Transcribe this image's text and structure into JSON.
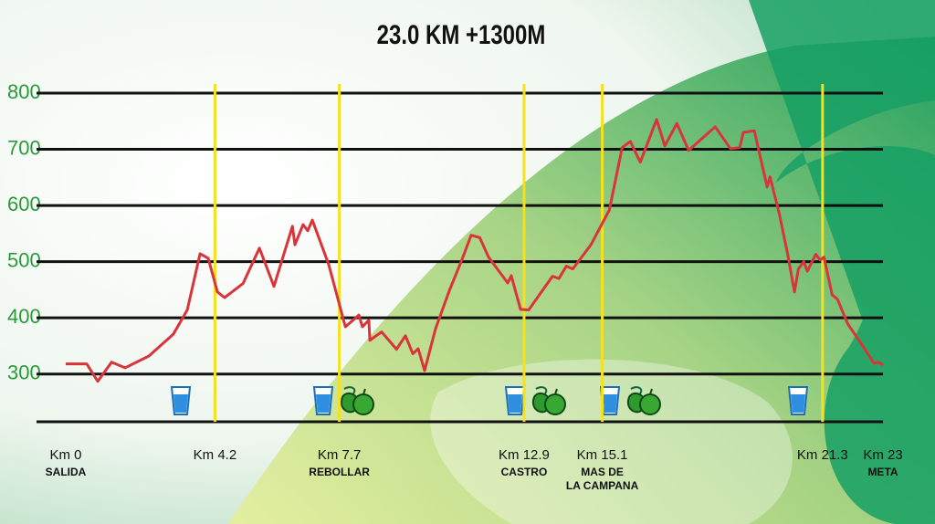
{
  "chart_data": {
    "type": "line",
    "title": "23.0 KM +1300M",
    "xlim": [
      0,
      23
    ],
    "ylim": [
      215,
      800
    ],
    "yticks": [
      300,
      400,
      500,
      600,
      700,
      800
    ],
    "grid": true,
    "series": [
      {
        "color": "#d9343a",
        "x": [
          0,
          0.59,
          0.9,
          1.29,
          1.67,
          2.34,
          3.03,
          3.42,
          3.78,
          4.01,
          4.27,
          4.47,
          4.99,
          5.45,
          5.86,
          6.38,
          6.45,
          6.68,
          6.81,
          6.94,
          7.4,
          7.87,
          8.25,
          8.35,
          8.53,
          8.56,
          8.89,
          9.31,
          9.56,
          9.77,
          9.92,
          10.1,
          10.41,
          10.8,
          11.16,
          11.41,
          11.65,
          11.9,
          12.24,
          12.44,
          12.54,
          12.8,
          13.03,
          13.7,
          13.88,
          14.09,
          14.27,
          14.78,
          15.3,
          15.66,
          15.89,
          16.17,
          16.63,
          16.86,
          17.2,
          17.53,
          18.28,
          18.71,
          18.97,
          19.07,
          19.38,
          19.74,
          19.82,
          20.08,
          20.31,
          20.51,
          20.62,
          20.77,
          20.87,
          21.11,
          21.23,
          21.34,
          21.57,
          21.72,
          22.01,
          22.24,
          22.75,
          22.88,
          23
        ],
        "values": [
          318,
          318,
          287,
          321,
          311,
          332,
          371,
          414,
          514,
          506,
          446,
          436,
          461,
          524,
          456,
          563,
          530,
          566,
          555,
          574,
          495,
          384,
          405,
          384,
          396,
          360,
          375,
          344,
          368,
          336,
          345,
          306,
          381,
          449,
          505,
          547,
          543,
          508,
          479,
          462,
          475,
          415,
          414,
          474,
          470,
          492,
          487,
          530,
          592,
          703,
          714,
          677,
          753,
          706,
          746,
          698,
          740,
          701,
          703,
          730,
          733,
          633,
          651,
          586,
          516,
          446,
          487,
          500,
          483,
          513,
          503,
          508,
          441,
          433,
          389,
          368,
          319,
          321,
          316
        ]
      }
    ],
    "checkpoints": [
      {
        "km": 0,
        "label": "Km 0",
        "name": [
          "SALIDA"
        ]
      },
      {
        "km": 4.2,
        "label": "Km 4.2",
        "name": []
      },
      {
        "km": 7.7,
        "label": "Km 7.7",
        "name": [
          "REBOLLAR"
        ]
      },
      {
        "km": 12.9,
        "label": "Km 12.9",
        "name": [
          "CASTRO"
        ]
      },
      {
        "km": 15.1,
        "label": "Km 15.1",
        "name": [
          "MAS DE",
          "LA CAMPANA"
        ]
      },
      {
        "km": 21.3,
        "label": "Km 21.3",
        "name": []
      },
      {
        "km": 23,
        "label": "Km 23",
        "name": [
          "META"
        ]
      }
    ],
    "checkpoint_color": "#f5e11e"
  }
}
